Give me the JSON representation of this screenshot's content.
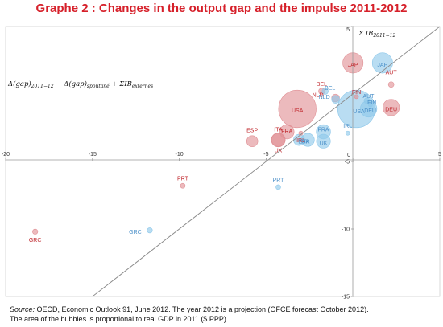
{
  "title": "Graphe 2 : Changes in the output gap and the impulse 2011-2012",
  "source_label": "Source:",
  "source_rest": " OECD, Economic Outlook 91, June 2012. The year 2012 is a projection (OFCE forecast October 2012).",
  "source_line2": "The area of the bubbles is proportional to real GDP in 2011 ($ PPP).",
  "colors": {
    "series_2011_12": "#e09095",
    "series_spontane": "#8ec8ea",
    "text_2011_12": "#c0282e",
    "text_spontane": "#4a8fc8"
  },
  "chart_data": {
    "type": "scatter",
    "xlim": [
      -20,
      5
    ],
    "ylim": [
      -15,
      5
    ],
    "xticks": [
      -20,
      -15,
      -10,
      -5,
      0,
      5
    ],
    "yticks": [
      5,
      0,
      -5,
      -10,
      -15
    ],
    "xlabel": "Δ(gap)2011−12 − Δ(gap)spontané + ΣIBexternes",
    "ylabel": "Σ IB2011−12",
    "diagonal": true,
    "grid": false,
    "series": [
      {
        "points": [
          {
            "label": "JAP",
            "x": 0.0,
            "y": 2.3,
            "size": 5.3
          },
          {
            "label": "AUT",
            "x": 2.2,
            "y": 0.7,
            "size": 0.4
          },
          {
            "label": "BEL",
            "x": -1.8,
            "y": 0.2,
            "size": 0.5
          },
          {
            "label": "FIN",
            "x": 0.2,
            "y": -0.2,
            "size": 0.2
          },
          {
            "label": "NLD",
            "x": -1.0,
            "y": -0.3,
            "size": 0.8
          },
          {
            "label": "DEU",
            "x": 2.2,
            "y": -1.0,
            "size": 3.5
          },
          {
            "label": "USA",
            "x": -3.2,
            "y": -1.1,
            "size": 18.0
          },
          {
            "label": "FRA",
            "x": -3.8,
            "y": -2.8,
            "size": 2.6
          },
          {
            "label": "IRL",
            "x": -3.0,
            "y": -2.9,
            "size": 0.2
          },
          {
            "label": "ESP",
            "x": -5.8,
            "y": -3.5,
            "size": 1.6
          },
          {
            "label": "ITA",
            "x": -4.3,
            "y": -3.4,
            "size": 2.2
          },
          {
            "label": "UK",
            "x": -4.3,
            "y": -3.4,
            "size": 2.5
          },
          {
            "label": "PRT",
            "x": -9.8,
            "y": -6.8,
            "size": 0.3
          },
          {
            "label": "GRC",
            "x": -18.3,
            "y": -10.2,
            "size": 0.35
          }
        ]
      },
      {
        "points": [
          {
            "label": "JAP",
            "x": 1.7,
            "y": 2.3,
            "size": 5.3
          },
          {
            "label": "AUT",
            "x": 0.8,
            "y": -0.5,
            "size": 0.4
          },
          {
            "label": "BEL",
            "x": -1.6,
            "y": 0.2,
            "size": 0.5
          },
          {
            "label": "FIN",
            "x": 1.0,
            "y": -0.8,
            "size": 0.2
          },
          {
            "label": "NLD",
            "x": -1.0,
            "y": -0.4,
            "size": 0.8
          },
          {
            "label": "DEU",
            "x": 0.9,
            "y": -1.1,
            "size": 3.5
          },
          {
            "label": "USA",
            "x": 0.2,
            "y": -1.1,
            "size": 18.0
          },
          {
            "label": "FRA",
            "x": -1.7,
            "y": -2.8,
            "size": 2.6
          },
          {
            "label": "IRL",
            "x": -0.3,
            "y": -2.9,
            "size": 0.2
          },
          {
            "label": "ESP",
            "x": -3.1,
            "y": -3.4,
            "size": 1.6
          },
          {
            "label": "ITA",
            "x": -2.6,
            "y": -3.4,
            "size": 2.2
          },
          {
            "label": "UK",
            "x": -1.7,
            "y": -3.5,
            "size": 2.5
          },
          {
            "label": "PRT",
            "x": -4.3,
            "y": -6.9,
            "size": 0.3
          },
          {
            "label": "GRC",
            "x": -11.7,
            "y": -10.1,
            "size": 0.35
          }
        ]
      }
    ]
  }
}
